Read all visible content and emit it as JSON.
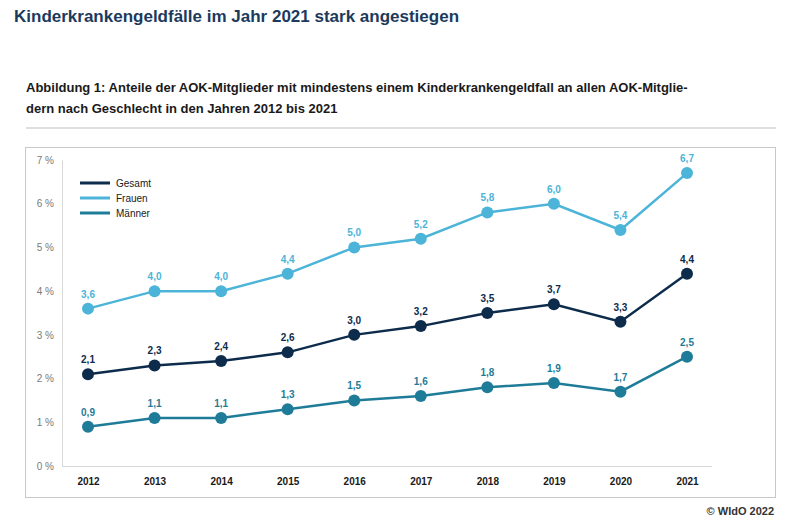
{
  "chart_data": {
    "type": "line",
    "title": "Kinderkrankengeldfälle im Jahr 2021 stark angestiegen",
    "subtitle": [
      "Abbildung 1: Anteile der AOK-Mitglieder mit mindestens einem Kinderkrankengeldfall an allen AOK-Mitglie-",
      "dern nach Geschlecht in den Jahren 2012 bis 2021"
    ],
    "source": "© WIdO 2022",
    "categories": [
      "2012",
      "2013",
      "2014",
      "2015",
      "2016",
      "2017",
      "2018",
      "2019",
      "2020",
      "2021"
    ],
    "series": [
      {
        "name": "Gesamt",
        "color": "#0d2b4b",
        "marker": "circle",
        "values": [
          2.1,
          2.3,
          2.4,
          2.6,
          3.0,
          3.2,
          3.5,
          3.7,
          3.3,
          4.4
        ],
        "value_labels": [
          "2,1",
          "2,3",
          "2,4",
          "2,6",
          "3,0",
          "3,2",
          "3,5",
          "3,7",
          "3,3",
          "4,4"
        ]
      },
      {
        "name": "Frauen",
        "color": "#4cb4d8",
        "marker": "circle",
        "values": [
          3.6,
          4.0,
          4.0,
          4.4,
          5.0,
          5.2,
          5.8,
          6.0,
          5.4,
          6.7
        ],
        "value_labels": [
          "3,6",
          "4,0",
          "4,0",
          "4,4",
          "5,0",
          "5,2",
          "5,8",
          "6,0",
          "5,4",
          "6,7"
        ]
      },
      {
        "name": "Männer",
        "color": "#1f7c98",
        "marker": "circle",
        "values": [
          0.9,
          1.1,
          1.1,
          1.3,
          1.5,
          1.6,
          1.8,
          1.9,
          1.7,
          2.5
        ],
        "value_labels": [
          "0,9",
          "1,1",
          "1,1",
          "1,3",
          "1,5",
          "1,6",
          "1,8",
          "1,9",
          "1,7",
          "2,5"
        ]
      }
    ],
    "ylim": [
      0,
      7
    ],
    "yticks": [
      {
        "value": 0,
        "label": "0 %"
      },
      {
        "value": 1,
        "label": "1 %"
      },
      {
        "value": 2,
        "label": "2 %"
      },
      {
        "value": 3,
        "label": "3 %"
      },
      {
        "value": 4,
        "label": "4 %"
      },
      {
        "value": 5,
        "label": "5 %"
      },
      {
        "value": 6,
        "label": "6 %"
      },
      {
        "value": 7,
        "label": "7 %"
      }
    ],
    "grid": false,
    "legend": "top-left",
    "data_labels": true
  }
}
